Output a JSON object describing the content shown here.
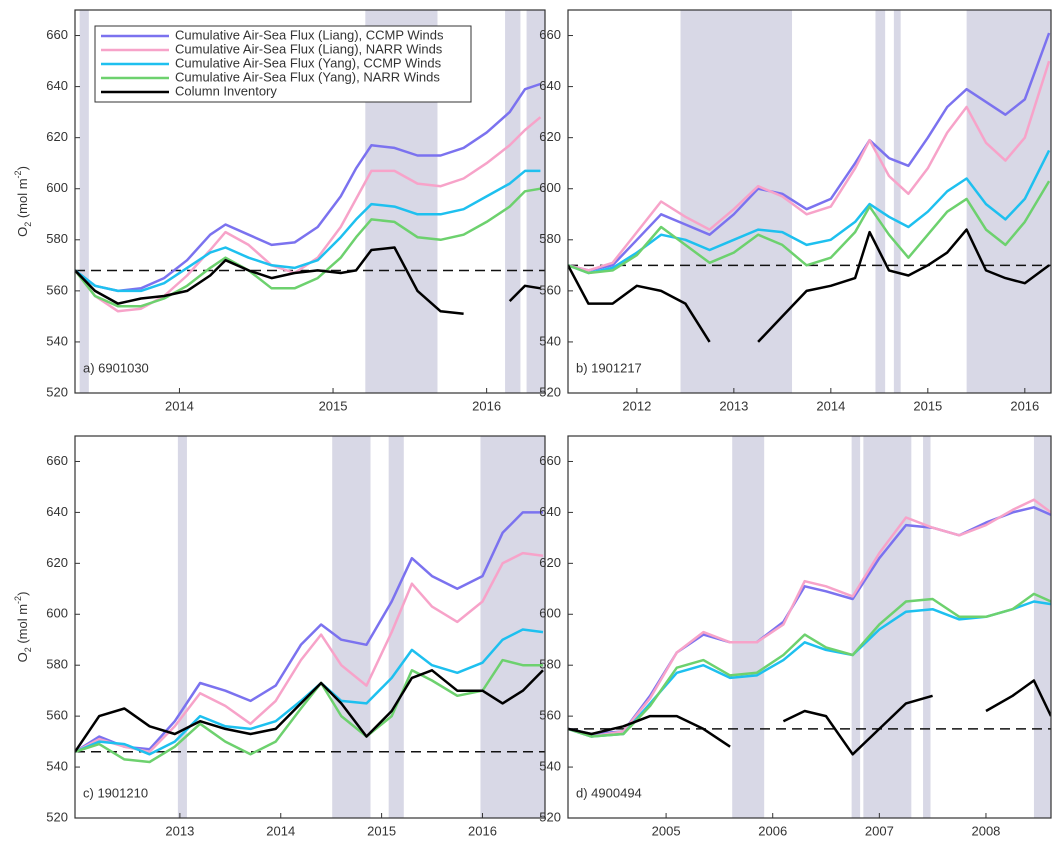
{
  "chart_data": [
    {
      "type": "line",
      "label": "a) 6901030",
      "ylabel": [
        "O",
        "2",
        " (mol m",
        "-2",
        ")"
      ],
      "legend": "upper left",
      "xlim": [
        2013.32,
        2016.38
      ],
      "xticks": [
        2014,
        2015,
        2016
      ],
      "ylim": [
        520,
        670
      ],
      "yticks": [
        520,
        540,
        560,
        580,
        600,
        620,
        640,
        660
      ],
      "reference": 568,
      "shaded": [
        [
          2013.35,
          2013.41
        ],
        [
          2015.21,
          2015.68
        ],
        [
          2016.12,
          2016.22
        ],
        [
          2016.26,
          2016.38
        ]
      ],
      "x": [
        2013.32,
        2013.45,
        2013.6,
        2013.75,
        2013.9,
        2014.05,
        2014.2,
        2014.3,
        2014.45,
        2014.6,
        2014.75,
        2014.9,
        2015.05,
        2015.15,
        2015.25,
        2015.4,
        2015.55,
        2015.7,
        2015.85,
        2016.0,
        2016.15,
        2016.25,
        2016.35
      ],
      "series": [
        {
          "name": "Cumulative Air-Sea Flux (Liang), CCMP Winds",
          "color": "#7b72ef",
          "values": [
            568,
            562,
            560,
            561,
            565,
            572,
            582,
            586,
            582,
            578,
            579,
            585,
            597,
            608,
            617,
            616,
            613,
            613,
            616,
            622,
            630,
            639,
            641
          ]
        },
        {
          "name": "Cumulative Air-Sea Flux (Liang), NARR Winds",
          "color": "#f7a3c9",
          "values": [
            568,
            558,
            552,
            553,
            558,
            566,
            576,
            583,
            578,
            570,
            567,
            573,
            585,
            596,
            607,
            607,
            602,
            601,
            604,
            610,
            617,
            623,
            628
          ]
        },
        {
          "name": "Cumulative Air-Sea Flux (Yang), CCMP Winds",
          "color": "#1ec0ef",
          "values": [
            568,
            562,
            560,
            560,
            563,
            569,
            575,
            577,
            573,
            570,
            569,
            572,
            581,
            588,
            594,
            593,
            590,
            590,
            592,
            597,
            602,
            607,
            607
          ]
        },
        {
          "name": "Cumulative Air-Sea Flux (Yang), NARR Winds",
          "color": "#6dd16e",
          "values": [
            568,
            558,
            554,
            554,
            557,
            562,
            569,
            573,
            568,
            561,
            561,
            565,
            573,
            581,
            588,
            587,
            581,
            580,
            582,
            587,
            593,
            599,
            600
          ]
        },
        {
          "name": "Column Inventory",
          "color": "#000000",
          "values": [
            568,
            560,
            555,
            557,
            558,
            560,
            566,
            572,
            568,
            565,
            567,
            568,
            567,
            568,
            576,
            577,
            560,
            552,
            551,
            null,
            556,
            562,
            561
          ]
        }
      ]
    },
    {
      "type": "line",
      "label": "b) 1901217",
      "xlim": [
        2011.29,
        2016.27
      ],
      "xticks": [
        2012,
        2013,
        2014,
        2015,
        2016
      ],
      "ylim": [
        520,
        670
      ],
      "yticks": [
        520,
        540,
        560,
        580,
        600,
        620,
        640,
        660
      ],
      "reference": 570,
      "shaded": [
        [
          2012.45,
          2013.6
        ],
        [
          2014.46,
          2014.56
        ],
        [
          2014.65,
          2014.72
        ],
        [
          2015.4,
          2016.27
        ]
      ],
      "x": [
        2011.29,
        2011.5,
        2011.75,
        2012,
        2012.25,
        2012.5,
        2012.75,
        2013,
        2013.25,
        2013.5,
        2013.75,
        2014,
        2014.25,
        2014.4,
        2014.6,
        2014.8,
        2015,
        2015.2,
        2015.4,
        2015.6,
        2015.8,
        2016,
        2016.25
      ],
      "series": [
        {
          "color": "#7b72ef",
          "values": [
            570,
            568,
            570,
            580,
            590,
            586,
            582,
            590,
            600,
            598,
            592,
            596,
            610,
            619,
            612,
            609,
            620,
            632,
            639,
            634,
            629,
            635,
            661
          ]
        },
        {
          "color": "#f7a3c9",
          "values": [
            570,
            568,
            571,
            583,
            595,
            589,
            584,
            592,
            601,
            597,
            590,
            593,
            608,
            619,
            605,
            598,
            608,
            622,
            632,
            618,
            611,
            620,
            650
          ]
        },
        {
          "color": "#1ec0ef",
          "values": [
            570,
            567,
            569,
            575,
            582,
            580,
            576,
            580,
            584,
            583,
            578,
            580,
            587,
            594,
            589,
            585,
            591,
            599,
            604,
            594,
            588,
            596,
            615
          ]
        },
        {
          "color": "#6dd16e",
          "values": [
            570,
            567,
            568,
            574,
            585,
            578,
            571,
            575,
            582,
            578,
            570,
            573,
            583,
            593,
            582,
            573,
            582,
            591,
            596,
            584,
            578,
            587,
            603
          ]
        },
        {
          "color": "#000000",
          "values": [
            570,
            555,
            555,
            562,
            560,
            555,
            540,
            null,
            540,
            550,
            560,
            562,
            565,
            583,
            568,
            566,
            570,
            575,
            584,
            568,
            565,
            563,
            570
          ]
        }
      ]
    },
    {
      "type": "line",
      "label": "c) 1901210",
      "ylabel": [
        "O",
        "2",
        " (mol m",
        "-2",
        ")"
      ],
      "xlim": [
        2011.96,
        2016.62
      ],
      "xticks": [
        2013,
        2014,
        2015,
        2016
      ],
      "ylim": [
        520,
        670
      ],
      "yticks": [
        520,
        540,
        560,
        580,
        600,
        620,
        640,
        660
      ],
      "reference": 546,
      "shaded": [
        [
          2012.98,
          2013.07
        ],
        [
          2014.51,
          2014.89
        ],
        [
          2015.07,
          2015.22
        ],
        [
          2015.98,
          2016.62
        ]
      ],
      "x": [
        2011.96,
        2012.2,
        2012.45,
        2012.7,
        2012.95,
        2013.2,
        2013.45,
        2013.7,
        2013.95,
        2014.2,
        2014.4,
        2014.6,
        2014.85,
        2015.1,
        2015.3,
        2015.5,
        2015.75,
        2016.0,
        2016.2,
        2016.4,
        2016.6
      ],
      "series": [
        {
          "color": "#7b72ef",
          "values": [
            546,
            552,
            548,
            547,
            558,
            573,
            570,
            566,
            572,
            588,
            596,
            590,
            588,
            605,
            622,
            615,
            610,
            615,
            632,
            640,
            640
          ]
        },
        {
          "color": "#f7a3c9",
          "values": [
            546,
            551,
            548,
            546,
            556,
            569,
            564,
            557,
            566,
            582,
            592,
            580,
            572,
            593,
            612,
            603,
            597,
            605,
            620,
            624,
            623
          ]
        },
        {
          "color": "#1ec0ef",
          "values": [
            546,
            550,
            549,
            545,
            550,
            560,
            556,
            555,
            558,
            566,
            573,
            566,
            565,
            575,
            586,
            580,
            577,
            581,
            590,
            594,
            593
          ]
        },
        {
          "color": "#6dd16e",
          "values": [
            546,
            549,
            543,
            542,
            548,
            557,
            550,
            545,
            550,
            563,
            573,
            560,
            552,
            560,
            578,
            574,
            568,
            570,
            582,
            580,
            580
          ]
        },
        {
          "color": "#000000",
          "values": [
            546,
            560,
            563,
            556,
            553,
            558,
            555,
            553,
            555,
            565,
            573,
            565,
            552,
            562,
            575,
            578,
            570,
            570,
            565,
            570,
            578
          ]
        }
      ]
    },
    {
      "type": "line",
      "label": "d) 4900494",
      "xlim": [
        2004.08,
        2008.61
      ],
      "xticks": [
        2005,
        2006,
        2007,
        2008
      ],
      "ylim": [
        520,
        670
      ],
      "yticks": [
        520,
        540,
        560,
        580,
        600,
        620,
        640,
        660
      ],
      "reference": 555,
      "shaded": [
        [
          2005.62,
          2005.92
        ],
        [
          2006.74,
          2006.82
        ],
        [
          2006.85,
          2007.3
        ],
        [
          2007.41,
          2007.48
        ],
        [
          2008.45,
          2008.61
        ]
      ],
      "x": [
        2004.08,
        2004.3,
        2004.6,
        2004.85,
        2005.1,
        2005.35,
        2005.6,
        2005.85,
        2006.1,
        2006.3,
        2006.5,
        2006.75,
        2007.0,
        2007.25,
        2007.5,
        2007.75,
        2008.0,
        2008.25,
        2008.45,
        2008.61
      ],
      "series": [
        {
          "color": "#7b72ef",
          "values": [
            555,
            553,
            554,
            568,
            585,
            592,
            589,
            589,
            597,
            611,
            609,
            606,
            622,
            635,
            634,
            631,
            636,
            640,
            642,
            639
          ]
        },
        {
          "color": "#f7a3c9",
          "values": [
            555,
            552,
            554,
            567,
            585,
            593,
            589,
            589,
            596,
            613,
            611,
            607,
            624,
            638,
            634,
            631,
            635,
            641,
            645,
            640
          ]
        },
        {
          "color": "#1ec0ef",
          "values": [
            555,
            552,
            553,
            565,
            577,
            580,
            575,
            576,
            582,
            589,
            586,
            584,
            594,
            601,
            602,
            598,
            599,
            602,
            605,
            604
          ]
        },
        {
          "color": "#6dd16e",
          "values": [
            555,
            552,
            553,
            564,
            579,
            582,
            576,
            577,
            584,
            592,
            587,
            584,
            596,
            605,
            606,
            599,
            599,
            602,
            608,
            605
          ]
        },
        {
          "color": "#000000",
          "values": [
            555,
            553,
            556,
            560,
            560,
            555,
            548,
            null,
            558,
            562,
            560,
            545,
            555,
            565,
            568,
            null,
            562,
            568,
            574,
            560
          ]
        }
      ]
    }
  ]
}
